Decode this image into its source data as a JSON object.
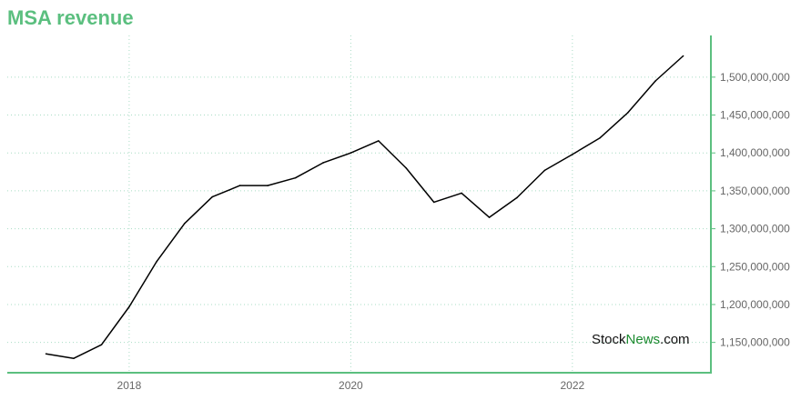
{
  "title": "MSA revenue",
  "colors": {
    "title": "#5bbf7f",
    "axis": "#5bbf7f",
    "grid": "#a8dcc4",
    "line": "#000000",
    "watermark_dark": "#111111",
    "watermark_green": "#1a8a2e"
  },
  "watermark": {
    "part1": "Stock",
    "part2": "News",
    "part3": ".com"
  },
  "chart_data": {
    "type": "line",
    "title": "MSA revenue",
    "xlabel": "",
    "ylabel": "",
    "x_ticks": [
      2018,
      2020,
      2022
    ],
    "x_tick_labels": [
      "2018",
      "2020",
      "2022"
    ],
    "y_ticks": [
      1150000000,
      1200000000,
      1250000000,
      1300000000,
      1350000000,
      1400000000,
      1450000000,
      1500000000
    ],
    "y_tick_labels": [
      "1,150,000,000",
      "1,200,000,000",
      "1,250,000,000",
      "1,300,000,000",
      "1,350,000,000",
      "1,400,000,000",
      "1,450,000,000",
      "1,500,000,000"
    ],
    "xlim": [
      2016.9,
      2023.25
    ],
    "ylim": [
      1110000000,
      1555000000
    ],
    "y_axis_side": "right",
    "grid": true,
    "series": [
      {
        "x": [
          2017.25,
          2017.5,
          2017.75,
          2018.0,
          2018.25,
          2018.5,
          2018.75,
          2019.0,
          2019.25,
          2019.5,
          2019.75,
          2020.0,
          2020.25,
          2020.5,
          2020.75,
          2021.0,
          2021.25,
          2021.5,
          2021.75,
          2022.0,
          2022.25,
          2022.5,
          2022.75,
          2023.0
        ],
        "y": [
          1135000000,
          1129000000,
          1147000000,
          1197000000,
          1257000000,
          1307000000,
          1342000000,
          1357000000,
          1357000000,
          1367000000,
          1387000000,
          1400000000,
          1416000000,
          1380000000,
          1335000000,
          1347000000,
          1315000000,
          1341000000,
          1377000000,
          1398000000,
          1420000000,
          1453000000,
          1495000000,
          1528000000
        ]
      }
    ]
  }
}
